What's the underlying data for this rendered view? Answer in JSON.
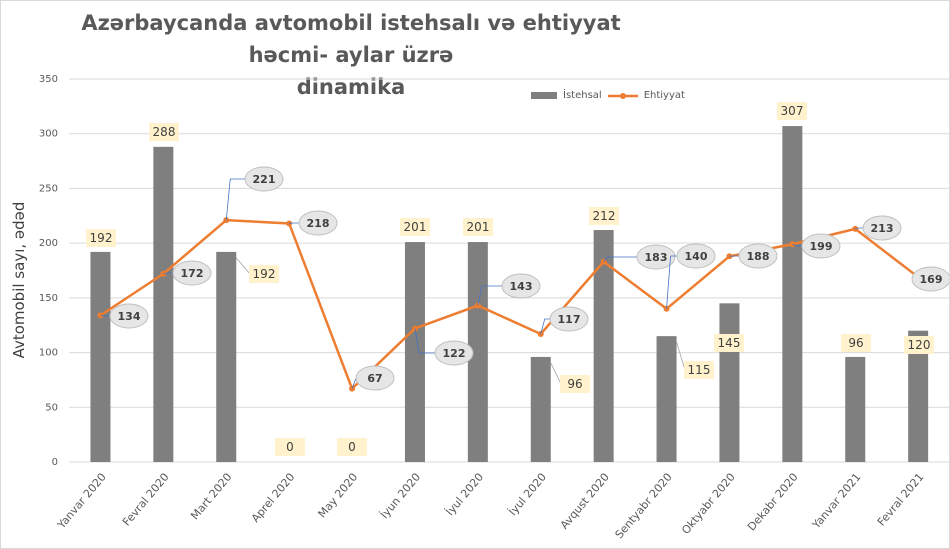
{
  "chart_data": {
    "type": "bar+line",
    "title": "Azərbaycanda avtomobil istehsalı və ehtiyyat həcmi- aylar üzrə dinamika",
    "title_lines": [
      "Azərbaycanda avtomobil istehsalı və ehtiyyat həcmi- aylar üzrə",
      "dinamika"
    ],
    "xlabel": "",
    "ylabel": "Avtomobil sayı, ədəd",
    "ylim": [
      0,
      350
    ],
    "yticks": [
      0,
      50,
      100,
      150,
      200,
      250,
      300,
      350
    ],
    "grid": true,
    "legend": "top-right",
    "categories": [
      "Yanvar 2020",
      "Fevral  2020",
      "Mart  2020",
      "Aprel  2020",
      "May  2020",
      "İyun  2020",
      "İyul  2020",
      "İyul  2020",
      "Avqust  2020",
      "Sentyabr  2020",
      "Oktyabr  2020",
      "Dekabr  2020",
      "Yanvar 2021",
      "Fevral 2021"
    ],
    "series": [
      {
        "name": "İstehsal",
        "type": "bar",
        "color": "#7f7f7f",
        "values": [
          192,
          288,
          192,
          0,
          0,
          201,
          201,
          96,
          212,
          115,
          145,
          307,
          96,
          120
        ]
      },
      {
        "name": "Ehtiyyat",
        "type": "line",
        "color": "#ed7d31",
        "values": [
          134,
          172,
          221,
          218,
          67,
          122,
          143,
          117,
          183,
          140,
          188,
          199,
          213,
          169
        ]
      }
    ]
  }
}
